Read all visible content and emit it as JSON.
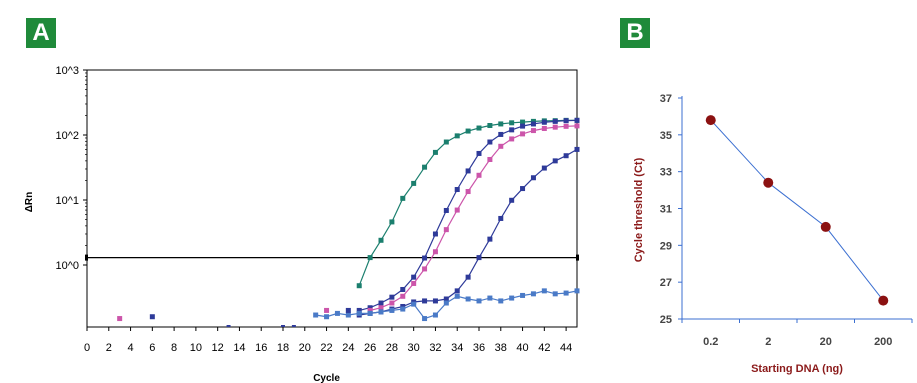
{
  "panels": {
    "a": {
      "badge": "A"
    },
    "b": {
      "badge": "B"
    }
  },
  "colors": {
    "badge": "#1f8a3a",
    "threshold": "#000000",
    "b_line": "#3b6fd1",
    "b_marker": "#8b1111",
    "b_axis_title": "#8b1a1a"
  },
  "chart_data": [
    {
      "id": "panel-a",
      "type": "line",
      "title": "",
      "xlabel": "Cycle",
      "ylabel": "ΔRn",
      "xlim": [
        0,
        45
      ],
      "y_scale": "log",
      "y_tick_labels": [
        "10^0",
        "10^1",
        "10^2",
        "10^3"
      ],
      "y_tick_values": [
        1,
        10,
        100,
        1000
      ],
      "xticks": [
        0,
        2,
        4,
        6,
        8,
        10,
        12,
        14,
        16,
        18,
        20,
        22,
        24,
        26,
        28,
        30,
        32,
        34,
        36,
        38,
        40,
        42,
        44
      ],
      "threshold": 1.3,
      "series": [
        {
          "color": "#1b7f6e",
          "x": [
            25,
            26,
            27,
            28,
            29,
            30,
            31,
            32,
            33,
            34,
            35,
            36,
            37,
            38,
            39,
            40,
            41,
            42,
            43,
            44,
            45
          ],
          "y": [
            0.48,
            1.3,
            2.4,
            4.6,
            10.6,
            18.0,
            32,
            54,
            78,
            97,
            115,
            128,
            140,
            148,
            154,
            158,
            162,
            165,
            166,
            168,
            168
          ]
        },
        {
          "color": "#2e3a99",
          "x": [
            25,
            26,
            27,
            28,
            29,
            30,
            31,
            32,
            33,
            34,
            35,
            36,
            37,
            38,
            39,
            40,
            41,
            42,
            43,
            44,
            45
          ],
          "y": [
            0.2,
            0.22,
            0.26,
            0.32,
            0.42,
            0.65,
            1.28,
            3.0,
            6.9,
            14.5,
            28,
            52,
            78,
            102,
            120,
            137,
            148,
            157,
            162,
            166,
            168
          ]
        },
        {
          "color": "#cc55aa",
          "x": [
            26,
            27,
            28,
            29,
            30,
            31,
            32,
            33,
            34,
            35,
            36,
            37,
            38,
            39,
            40,
            41,
            42,
            43,
            44,
            45
          ],
          "y": [
            0.2,
            0.22,
            0.26,
            0.33,
            0.52,
            0.87,
            1.6,
            3.5,
            7.0,
            13.5,
            24,
            42,
            67,
            87,
            104,
            117,
            126,
            132,
            136,
            138
          ]
        },
        {
          "color": "#2e3a99",
          "x": [
            25,
            26,
            27,
            28,
            29,
            30,
            31,
            32,
            33,
            34,
            35,
            36,
            37,
            38,
            39,
            40,
            41,
            42,
            43,
            44,
            45
          ],
          "y": [
            0.17,
            0.18,
            0.19,
            0.21,
            0.23,
            0.27,
            0.28,
            0.28,
            0.3,
            0.4,
            0.65,
            1.3,
            2.5,
            5.2,
            9.9,
            15.0,
            22,
            31,
            40,
            48,
            60
          ]
        },
        {
          "color": "#4a7ac7",
          "x": [
            21,
            22,
            23,
            24,
            25,
            26,
            27,
            28,
            29,
            30,
            31,
            32,
            33,
            34,
            35,
            36,
            37,
            38,
            39,
            40,
            41,
            42,
            43,
            44,
            45
          ],
          "y": [
            0.17,
            0.16,
            0.18,
            0.17,
            0.18,
            0.18,
            0.19,
            0.2,
            0.21,
            0.25,
            0.15,
            0.17,
            0.26,
            0.33,
            0.3,
            0.28,
            0.31,
            0.28,
            0.31,
            0.34,
            0.36,
            0.4,
            0.36,
            0.37,
            0.4
          ]
        },
        {
          "color": "#cc55aa",
          "x": [
            3,
            22
          ],
          "y": [
            0.15,
            0.2
          ],
          "markers_only": true
        },
        {
          "color": "#2e3a99",
          "x": [
            6,
            24
          ],
          "y": [
            0.16,
            0.2
          ],
          "markers_only": true
        }
      ]
    },
    {
      "id": "panel-b",
      "type": "line",
      "title": "",
      "xlabel": "Starting DNA (ng)",
      "ylabel": "Cycle threshold (Ct)",
      "categories": [
        "0.2",
        "2",
        "20",
        "200"
      ],
      "values": [
        35.8,
        32.4,
        30.0,
        26.0
      ],
      "ylim": [
        25,
        37
      ],
      "yticks": [
        25,
        27,
        29,
        31,
        33,
        35,
        37
      ]
    }
  ]
}
